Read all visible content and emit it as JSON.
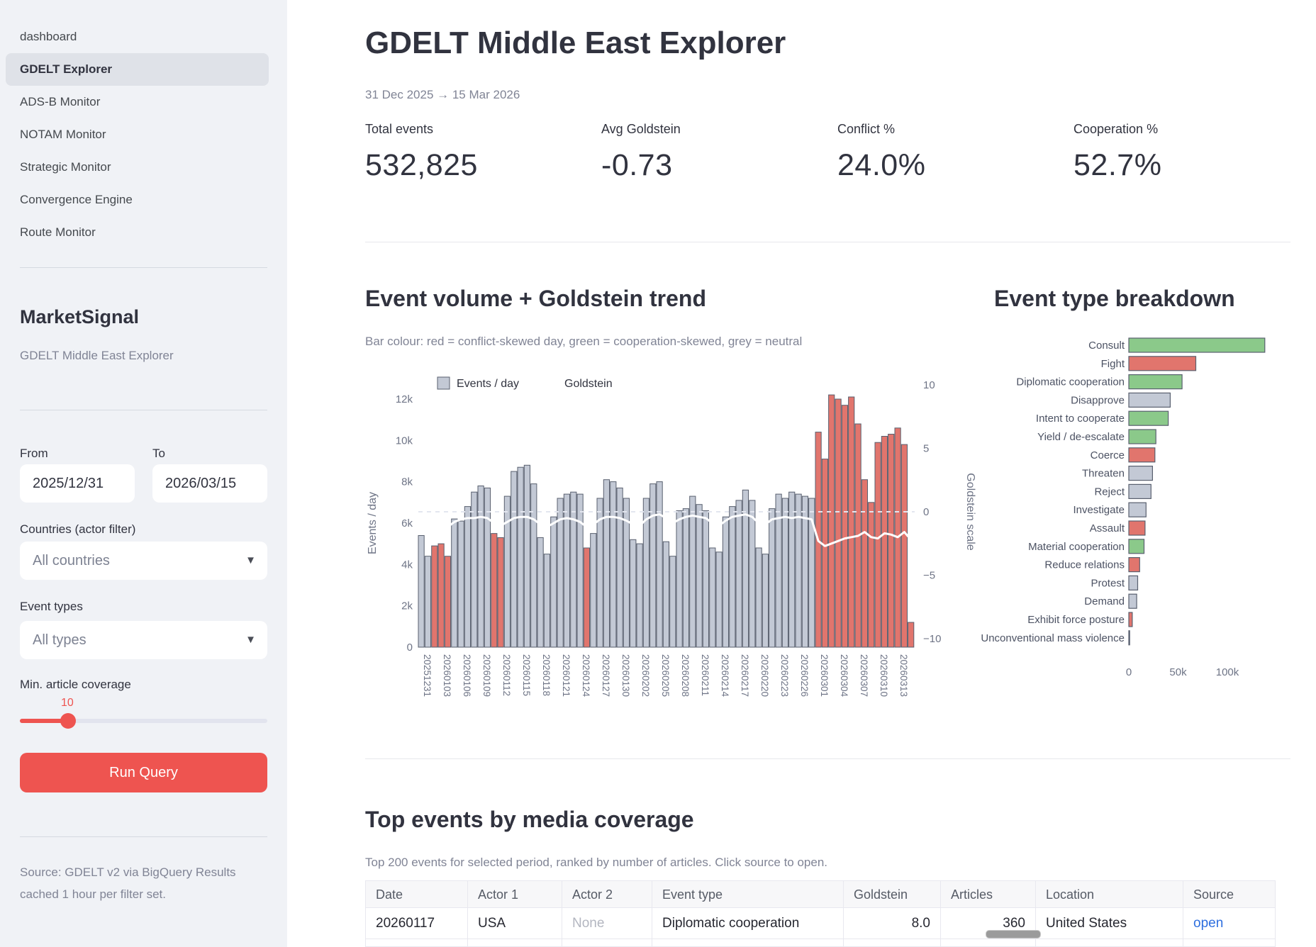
{
  "sidebar": {
    "nav": [
      {
        "label": "dashboard",
        "active": false
      },
      {
        "label": "GDELT Explorer",
        "active": true
      },
      {
        "label": "ADS-B Monitor",
        "active": false
      },
      {
        "label": "NOTAM Monitor",
        "active": false
      },
      {
        "label": "Strategic Monitor",
        "active": false
      },
      {
        "label": "Convergence Engine",
        "active": false
      },
      {
        "label": "Route Monitor",
        "active": false
      }
    ],
    "brand": "MarketSignal",
    "brand_sub": "GDELT Middle East Explorer",
    "from_label": "From",
    "from_value": "2025/12/31",
    "to_label": "To",
    "to_value": "2026/03/15",
    "countries_label": "Countries (actor filter)",
    "countries_value": "All countries",
    "event_types_label": "Event types",
    "event_types_value": "All types",
    "coverage_label": "Min. article coverage",
    "coverage_value": "10",
    "run_button": "Run Query",
    "source_note": "Source: GDELT v2 via BigQuery Results cached 1 hour per filter set."
  },
  "header": {
    "title": "GDELT Middle East Explorer",
    "date_range": "31 Dec 2025 → 15 Mar 2026",
    "metrics": [
      {
        "label": "Total events",
        "value": "532,825"
      },
      {
        "label": "Avg Goldstein",
        "value": "-0.73"
      },
      {
        "label": "Conflict %",
        "value": "24.0%"
      },
      {
        "label": "Cooperation %",
        "value": "52.7%"
      }
    ]
  },
  "sections": {
    "volume": {
      "title": "Event volume + Goldstein trend",
      "subtitle": "Bar colour: red = conflict-skewed day, green = cooperation-skewed, grey = neutral",
      "legend_bar": "Events / day",
      "legend_line": "Goldstein",
      "ylabel": "Events / day",
      "ylabel_right": "Goldstein scale"
    },
    "breakdown": {
      "title": "Event type breakdown"
    },
    "top_events": {
      "title": "Top events by media coverage",
      "subtitle": "Top 200 events for selected period, ranked by number of articles. Click source to open."
    }
  },
  "chart_data": [
    {
      "type": "bar",
      "title": "Event volume + Goldstein trend",
      "ylabel": "Events / day",
      "ylabel_right": "Goldstein scale",
      "ylim": [
        0,
        12000
      ],
      "ylim_right": [
        -10,
        10
      ],
      "yticks": [
        "0",
        "2k",
        "4k",
        "6k",
        "8k",
        "10k",
        "12k"
      ],
      "yticks_right": [
        "10",
        "5",
        "0",
        "−5",
        "−10"
      ],
      "x_tick_labels": [
        "20251231",
        "20260103",
        "20260106",
        "20260109",
        "20260112",
        "20260115",
        "20260118",
        "20260121",
        "20260124",
        "20260127",
        "20260130",
        "20260202",
        "20260205",
        "20260208",
        "20260211",
        "20260214",
        "20260217",
        "20260220",
        "20260223",
        "20260226",
        "20260301",
        "20260304",
        "20260307",
        "20260310",
        "20260313"
      ],
      "x_tick_step": 3,
      "values_k": [
        5.4,
        4.4,
        4.9,
        5.0,
        4.4,
        6.2,
        6.1,
        6.8,
        7.5,
        7.8,
        7.7,
        5.5,
        5.3,
        7.3,
        8.5,
        8.7,
        8.8,
        7.9,
        5.3,
        4.5,
        6.3,
        7.2,
        7.4,
        7.5,
        7.4,
        4.8,
        5.5,
        7.2,
        8.1,
        8.0,
        7.7,
        7.2,
        5.2,
        5.0,
        7.2,
        7.9,
        8.0,
        5.1,
        4.4,
        6.6,
        6.7,
        7.3,
        6.9,
        6.6,
        4.8,
        4.6,
        6.3,
        6.8,
        7.1,
        7.6,
        7.1,
        4.8,
        4.5,
        6.7,
        7.4,
        7.2,
        7.5,
        7.4,
        7.3,
        7.2,
        10.4,
        9.1,
        12.2,
        12.0,
        11.7,
        12.1,
        10.8,
        8.1,
        7.0,
        9.9,
        10.2,
        10.3,
        10.6,
        9.8,
        1.2
      ],
      "red_days": [
        2,
        3,
        4,
        11,
        12,
        25,
        60,
        61,
        62,
        63,
        64,
        65,
        66,
        67,
        68,
        69,
        70,
        71,
        72,
        73,
        74
      ],
      "goldstein": [
        -0.9,
        -1.0,
        -1.2,
        -1.3,
        -1.2,
        -0.8,
        -0.6,
        -0.5,
        -0.5,
        -0.4,
        -0.5,
        -0.9,
        -1.1,
        -0.8,
        -0.5,
        -0.4,
        -0.4,
        -0.6,
        -1.0,
        -1.2,
        -0.9,
        -0.6,
        -0.5,
        -0.6,
        -0.8,
        -1.2,
        -1.0,
        -0.6,
        -0.4,
        -0.4,
        -0.5,
        -0.7,
        -1.0,
        -1.1,
        -0.6,
        -0.3,
        -0.2,
        -0.5,
        -0.9,
        -0.6,
        -0.4,
        -0.3,
        -0.4,
        -0.5,
        -0.9,
        -1.1,
        -0.7,
        -0.4,
        -0.3,
        -0.2,
        -0.4,
        -0.9,
        -1.0,
        -0.6,
        -0.5,
        -0.4,
        -0.5,
        -0.4,
        -0.5,
        -0.6,
        -2.3,
        -2.7,
        -2.5,
        -2.3,
        -2.1,
        -2.0,
        -1.9,
        -1.6,
        -2.0,
        -2.1,
        -1.7,
        -1.8,
        -2.0,
        -1.6,
        -2.2
      ],
      "goldstein_zero_dashed_line": true,
      "legend": [
        "Events / day",
        "Goldstein"
      ]
    },
    {
      "type": "bar",
      "orientation": "horizontal",
      "title": "Event type breakdown",
      "categories": [
        "Consult",
        "Fight",
        "Diplomatic cooperation",
        "Disapprove",
        "Intent to cooperate",
        "Yield / de-escalate",
        "Coerce",
        "Threaten",
        "Reject",
        "Investigate",
        "Assault",
        "Material cooperation",
        "Reduce relations",
        "Protest",
        "Demand",
        "Exhibit force posture",
        "Unconventional mass violence"
      ],
      "values": [
        138000,
        68000,
        54000,
        42000,
        40000,
        27500,
        26500,
        24000,
        22500,
        17500,
        16500,
        15500,
        11000,
        9000,
        8000,
        3500,
        600
      ],
      "bar_colors": [
        "green",
        "red",
        "green",
        "grey",
        "green",
        "green",
        "red",
        "grey",
        "grey",
        "grey",
        "red",
        "green",
        "red",
        "grey",
        "grey",
        "red",
        "red"
      ],
      "xticks": [
        "0",
        "50k",
        "100k"
      ],
      "xlim": [
        0,
        150000
      ]
    }
  ],
  "table": {
    "columns": [
      "Date",
      "Actor 1",
      "Actor 2",
      "Event type",
      "Goldstein",
      "Articles",
      "Location",
      "Source"
    ],
    "rows": [
      [
        "20260117",
        "USA",
        "None",
        "Diplomatic cooperation",
        "8.0",
        "360",
        "United States",
        "open"
      ]
    ]
  },
  "colors": {
    "accent_red": "#ee5450",
    "bar_grey": "#c3c9d5",
    "bar_red": "#e1756d",
    "bar_green": "#8bc98a",
    "bar_edge": "#59606f",
    "link_blue": "#2e6fdf",
    "sidebar_bg": "#f0f2f6"
  }
}
